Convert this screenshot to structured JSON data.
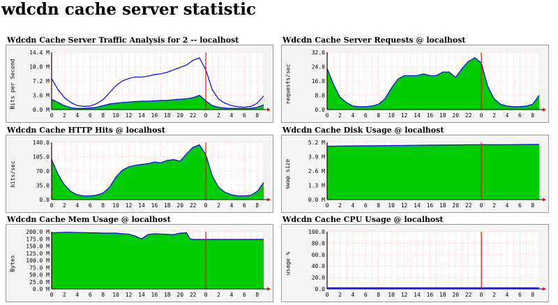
{
  "page": {
    "title": "wdcdn cache server statistic"
  },
  "panels": [
    {
      "title": "Wdcdn Cache Server Traffic Analysis for 2 -- localhost"
    },
    {
      "title": "Wdcdn Cache Server Requests @ localhost"
    },
    {
      "title": "Wdcdn Cache HTTP Hits @ localhost"
    },
    {
      "title": "Wdcdn Cache Disk Usage @ localhost"
    },
    {
      "title": "Wdcdn Cache Mem Usage @ localhost"
    },
    {
      "title": "Wdcdn Cache CPU Usage @ localhost"
    }
  ],
  "colors": {
    "area": "#00cc00",
    "line": "#0000ff",
    "grid": "#ff9999",
    "marker": "#ff0000",
    "plot_bg": "#ffffff"
  },
  "chart_data": [
    {
      "type": "area",
      "ylabel": "Bits per Second",
      "yticks": [
        "0.0 M",
        "3.6 M",
        "7.2 M",
        "10.8 M",
        "14.4 M"
      ],
      "ylim": [
        0,
        14.4
      ],
      "xticks": [
        "0",
        "2",
        "4",
        "6",
        "8",
        "10",
        "12",
        "14",
        "16",
        "18",
        "20",
        "22",
        "0",
        "2",
        "4",
        "6",
        "8"
      ],
      "x_hours": [
        0,
        1,
        2,
        3,
        4,
        5,
        6,
        7,
        8,
        9,
        10,
        11,
        12,
        13,
        14,
        15,
        16,
        17,
        18,
        19,
        20,
        21,
        22,
        23,
        24,
        25,
        26,
        27,
        28,
        29,
        30,
        31,
        32,
        33
      ],
      "series": [
        {
          "style": "area",
          "values": [
            2.6,
            1.8,
            1.0,
            0.5,
            0.3,
            0.3,
            0.4,
            0.6,
            1.0,
            1.4,
            1.6,
            1.8,
            1.9,
            2.0,
            2.1,
            2.1,
            2.2,
            2.3,
            2.3,
            2.5,
            2.6,
            2.7,
            3.0,
            3.6,
            2.2,
            1.0,
            0.6,
            0.4,
            0.3,
            0.3,
            0.3,
            0.3,
            0.6,
            1.2
          ]
        },
        {
          "style": "line",
          "values": [
            7.8,
            5.0,
            3.0,
            1.8,
            1.0,
            0.8,
            0.9,
            1.5,
            2.5,
            4.2,
            6.0,
            7.2,
            7.8,
            8.2,
            8.2,
            8.4,
            8.8,
            9.0,
            9.4,
            10.0,
            10.6,
            11.2,
            12.4,
            13.0,
            10.0,
            5.0,
            2.6,
            1.6,
            1.0,
            0.7,
            0.6,
            0.8,
            1.6,
            3.4
          ]
        }
      ],
      "markers": [
        0,
        24
      ]
    },
    {
      "type": "area",
      "ylabel": "requests/sec",
      "yticks": [
        "0.0",
        "8.0",
        "16.0",
        "24.0",
        "32.0"
      ],
      "ylim": [
        0,
        32
      ],
      "xticks": [
        "0",
        "2",
        "4",
        "6",
        "8",
        "10",
        "12",
        "14",
        "16",
        "18",
        "20",
        "22",
        "0",
        "2",
        "4",
        "6",
        "8"
      ],
      "x_hours": [
        0,
        1,
        2,
        3,
        4,
        5,
        6,
        7,
        8,
        9,
        10,
        11,
        12,
        13,
        14,
        15,
        16,
        17,
        18,
        19,
        20,
        21,
        22,
        23,
        24,
        25,
        26,
        27,
        28,
        29,
        30,
        31,
        32,
        33
      ],
      "series": [
        {
          "style": "area",
          "values": [
            23,
            14,
            7,
            4,
            2,
            1.6,
            1.6,
            2,
            3,
            6,
            12,
            17,
            19,
            19,
            19,
            20,
            19,
            19,
            21,
            21,
            18,
            23,
            27,
            29,
            26,
            13,
            6,
            3,
            2,
            1.6,
            1.6,
            2,
            3,
            8
          ]
        }
      ],
      "markers": [
        0,
        24
      ]
    },
    {
      "type": "area",
      "ylabel": "hits/sec",
      "yticks": [
        "0.0",
        "35.0",
        "70.0",
        "105.0",
        "140.0"
      ],
      "ylim": [
        0,
        140
      ],
      "xticks": [
        "0",
        "2",
        "4",
        "6",
        "8",
        "10",
        "12",
        "14",
        "16",
        "18",
        "20",
        "22",
        "0",
        "2",
        "4",
        "6",
        "8"
      ],
      "x_hours": [
        0,
        1,
        2,
        3,
        4,
        5,
        6,
        7,
        8,
        9,
        10,
        11,
        12,
        13,
        14,
        15,
        16,
        17,
        18,
        19,
        20,
        21,
        22,
        23,
        24,
        25,
        26,
        27,
        28,
        29,
        30,
        31,
        32,
        33
      ],
      "series": [
        {
          "style": "area",
          "values": [
            98,
            62,
            36,
            20,
            12,
            9,
            9,
            11,
            16,
            30,
            55,
            72,
            80,
            84,
            86,
            88,
            92,
            90,
            96,
            98,
            94,
            112,
            128,
            134,
            110,
            58,
            30,
            18,
            12,
            9,
            9,
            11,
            20,
            42
          ]
        }
      ],
      "markers": [
        0,
        24
      ]
    },
    {
      "type": "area",
      "ylabel": "swap size",
      "yticks": [
        "0.0 M",
        "1.3 M",
        "2.6 M",
        "3.9 M",
        "5.2 M"
      ],
      "ylim": [
        0,
        5.2
      ],
      "xticks": [
        "0",
        "2",
        "4",
        "6",
        "8",
        "10",
        "12",
        "14",
        "16",
        "18",
        "20",
        "22",
        "0",
        "2",
        "4",
        "6",
        "8"
      ],
      "x_hours": [
        0,
        4,
        8,
        12,
        16,
        20,
        24,
        28,
        33
      ],
      "series": [
        {
          "style": "area",
          "values": [
            4.85,
            4.88,
            4.9,
            4.93,
            4.95,
            4.97,
            5.0,
            5.0,
            5.02
          ]
        }
      ],
      "markers": [
        0,
        24
      ]
    },
    {
      "type": "area",
      "ylabel": "Bytes",
      "yticks": [
        "0.0 M",
        "25.0 M",
        "50.0 M",
        "75.0 M",
        "100.0 M",
        "125.0 M",
        "150.0 M",
        "175.0 M",
        "200.0 M"
      ],
      "ylim": [
        0,
        200
      ],
      "xticks": [
        "0",
        "2",
        "4",
        "6",
        "8",
        "10",
        "12",
        "14",
        "16",
        "18",
        "20",
        "22",
        "0",
        "2",
        "4",
        "6",
        "8"
      ],
      "x_hours": [
        0,
        1,
        2,
        3,
        4,
        5,
        6,
        7,
        8,
        9,
        10,
        11,
        12,
        13,
        14,
        15,
        16,
        17,
        18,
        19,
        20,
        21,
        21.5,
        22,
        33
      ],
      "series": [
        {
          "style": "area",
          "values": [
            196,
            197,
            198,
            198,
            197,
            197,
            196,
            196,
            195,
            195,
            195,
            193,
            192,
            185,
            175,
            190,
            193,
            192,
            191,
            190,
            195,
            196,
            176,
            173,
            173
          ]
        }
      ],
      "markers": [
        0,
        24
      ]
    },
    {
      "type": "area",
      "ylabel": "usage %",
      "yticks": [
        "0.0",
        "20.0",
        "40.0",
        "60.0",
        "80.0",
        "100.0"
      ],
      "ylim": [
        0,
        100
      ],
      "xticks": [
        "0",
        "2",
        "4",
        "6",
        "8",
        "10",
        "12",
        "14",
        "16",
        "18",
        "20",
        "22",
        "0",
        "2",
        "4",
        "6",
        "8"
      ],
      "x_hours": [
        0,
        33
      ],
      "series": [
        {
          "style": "area",
          "values": [
            2,
            2
          ]
        }
      ],
      "markers": [
        0,
        24
      ]
    }
  ]
}
